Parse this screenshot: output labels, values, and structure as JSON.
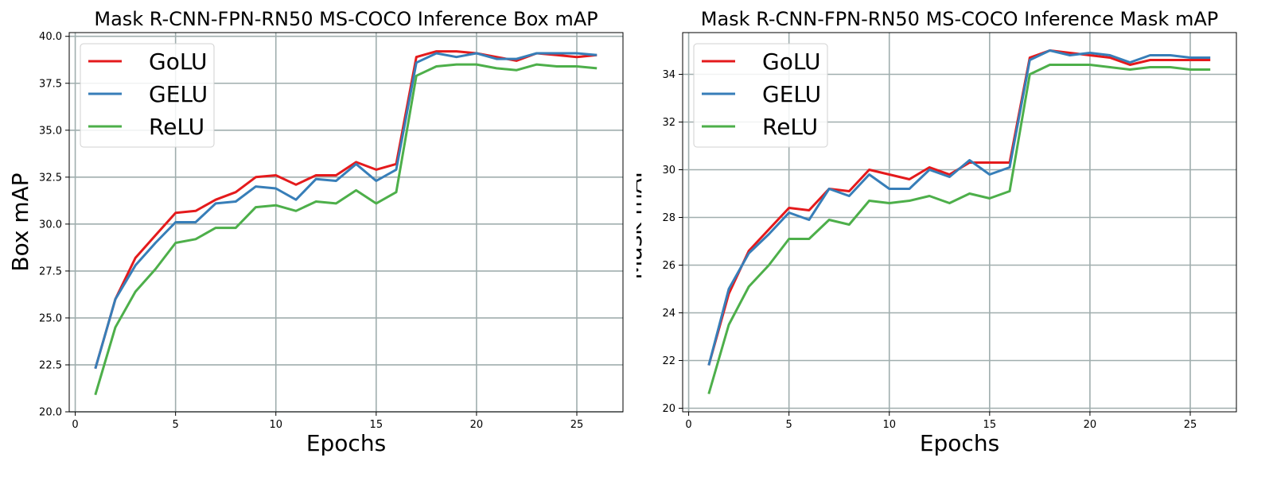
{
  "chart_data": [
    {
      "type": "line",
      "title": "Mask R-CNN-FPN-RN50 MS-COCO Inference Box mAP",
      "xlabel": "Epochs",
      "ylabel": "Box mAP",
      "xlim": [
        -0.3,
        27.3
      ],
      "ylim": [
        20.0,
        40.2
      ],
      "xticks": [
        0,
        5,
        10,
        15,
        20,
        25
      ],
      "yticks": [
        20.0,
        22.5,
        25.0,
        27.5,
        30.0,
        32.5,
        35.0,
        37.5,
        40.0
      ],
      "ytick_labels": [
        "20.0",
        "22.5",
        "25.0",
        "27.5",
        "30.0",
        "32.5",
        "35.0",
        "37.5",
        "40.0"
      ],
      "grid": true,
      "legend_position": "top-left",
      "x": [
        1,
        2,
        3,
        4,
        5,
        6,
        7,
        8,
        9,
        10,
        11,
        12,
        13,
        14,
        15,
        16,
        17,
        18,
        19,
        20,
        21,
        22,
        23,
        24,
        25,
        26
      ],
      "series": [
        {
          "name": "GoLU",
          "color": "#e41a1c",
          "values": [
            22.3,
            26.0,
            28.2,
            29.4,
            30.6,
            30.7,
            31.3,
            31.7,
            32.5,
            32.6,
            32.1,
            32.6,
            32.6,
            33.3,
            32.9,
            33.2,
            38.9,
            39.2,
            39.2,
            39.1,
            38.9,
            38.7,
            39.1,
            39.0,
            38.9,
            39.0
          ]
        },
        {
          "name": "GELU",
          "color": "#377eb8",
          "values": [
            22.3,
            26.0,
            27.8,
            29.0,
            30.1,
            30.1,
            31.1,
            31.2,
            32.0,
            31.9,
            31.3,
            32.4,
            32.3,
            33.2,
            32.3,
            32.9,
            38.6,
            39.1,
            38.9,
            39.1,
            38.8,
            38.8,
            39.1,
            39.1,
            39.1,
            39.0
          ]
        },
        {
          "name": "ReLU",
          "color": "#4daf4a",
          "values": [
            20.9,
            24.5,
            26.4,
            27.6,
            29.0,
            29.2,
            29.8,
            29.8,
            30.9,
            31.0,
            30.7,
            31.2,
            31.1,
            31.8,
            31.1,
            31.7,
            37.9,
            38.4,
            38.5,
            38.5,
            38.3,
            38.2,
            38.5,
            38.4,
            38.4,
            38.3
          ]
        }
      ]
    },
    {
      "type": "line",
      "title": "Mask R-CNN-FPN-RN50 MS-COCO Inference Mask mAP",
      "xlabel": "Epochs",
      "ylabel": "Mask mAP",
      "xlim": [
        -0.3,
        27.3
      ],
      "ylim": [
        19.85,
        35.75
      ],
      "xticks": [
        0,
        5,
        10,
        15,
        20,
        25
      ],
      "yticks": [
        20,
        22,
        24,
        26,
        28,
        30,
        32,
        34
      ],
      "ytick_labels": [
        "20",
        "22",
        "24",
        "26",
        "28",
        "30",
        "32",
        "34"
      ],
      "grid": true,
      "legend_position": "top-left",
      "x": [
        1,
        2,
        3,
        4,
        5,
        6,
        7,
        8,
        9,
        10,
        11,
        12,
        13,
        14,
        15,
        16,
        17,
        18,
        19,
        20,
        21,
        22,
        23,
        24,
        25,
        26
      ],
      "series": [
        {
          "name": "GoLU",
          "color": "#e41a1c",
          "values": [
            21.8,
            24.8,
            26.6,
            27.5,
            28.4,
            28.3,
            29.2,
            29.1,
            30.0,
            29.8,
            29.6,
            30.1,
            29.8,
            30.3,
            30.3,
            30.3,
            34.7,
            35.0,
            34.9,
            34.8,
            34.7,
            34.4,
            34.6,
            34.6,
            34.6,
            34.6
          ]
        },
        {
          "name": "GELU",
          "color": "#377eb8",
          "values": [
            21.8,
            25.0,
            26.5,
            27.3,
            28.2,
            27.9,
            29.2,
            28.9,
            29.8,
            29.2,
            29.2,
            30.0,
            29.7,
            30.4,
            29.8,
            30.1,
            34.6,
            35.0,
            34.8,
            34.9,
            34.8,
            34.5,
            34.8,
            34.8,
            34.7,
            34.7
          ]
        },
        {
          "name": "ReLU",
          "color": "#4daf4a",
          "values": [
            20.6,
            23.5,
            25.1,
            26.0,
            27.1,
            27.1,
            27.9,
            27.7,
            28.7,
            28.6,
            28.7,
            28.9,
            28.6,
            29.0,
            28.8,
            29.1,
            34.0,
            34.4,
            34.4,
            34.4,
            34.3,
            34.2,
            34.3,
            34.3,
            34.2,
            34.2
          ]
        }
      ]
    }
  ]
}
